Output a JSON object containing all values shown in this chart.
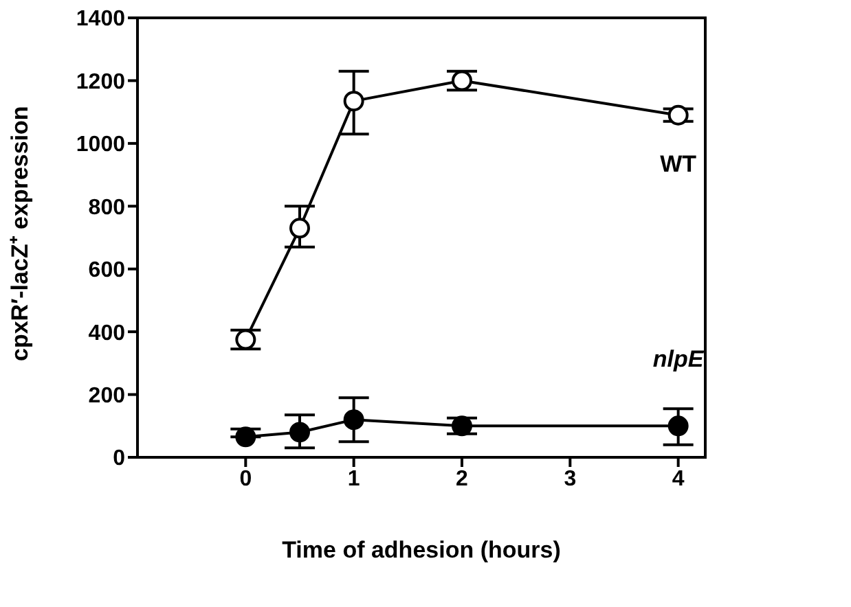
{
  "chart_data": {
    "type": "line",
    "xlabel": "Time of adhesion (hours)",
    "ylabel": "cpxR′-lacZ⁺ expression",
    "x": [
      0,
      0.5,
      1,
      2,
      4
    ],
    "series": [
      {
        "name": "WT",
        "color": "#000000",
        "marker": "circle",
        "values": [
          375,
          730,
          1135,
          1200,
          1090
        ],
        "errors": [
          30,
          [
            670,
            800
          ],
          [
            1030,
            1230
          ],
          [
            1170,
            1230
          ],
          20
        ]
      },
      {
        "name": "nlpE",
        "color": "#000000",
        "marker": "circle",
        "values": [
          65,
          80,
          120,
          100,
          100
        ],
        "errors": [
          [
            65,
            90
          ],
          [
            30,
            135
          ],
          [
            50,
            190
          ],
          [
            75,
            125
          ],
          [
            40,
            155
          ]
        ]
      }
    ],
    "xlim": [
      -1,
      4.25
    ],
    "xticks": [
      0,
      1,
      2,
      3,
      4
    ],
    "ylim": [
      0,
      1400
    ],
    "yticks": [
      0,
      200,
      400,
      600,
      800,
      1000,
      1200,
      1400
    ]
  }
}
